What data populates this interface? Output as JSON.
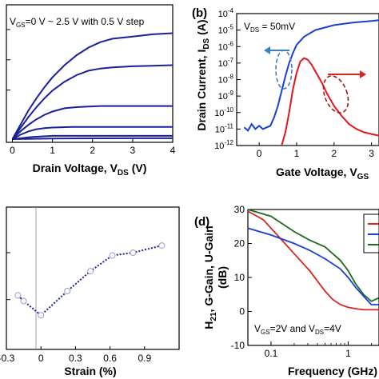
{
  "chart_data": [
    {
      "type": "line",
      "xlabel_main": "Drain Voltage, V",
      "xlabel_sub": "DS",
      "xlabel_tail": " (V)",
      "annotation": {
        "prefix": "V",
        "sub": "GS",
        "text": "=0 V ~ 2.5 V with 0.5 V step"
      },
      "xlim": [
        -0.15,
        4
      ],
      "xticks": [
        "0",
        "1",
        "2",
        "3",
        "4"
      ],
      "xtick_values": [
        0,
        1,
        2,
        3,
        4
      ],
      "ylim": [
        0,
        1
      ],
      "colors": {
        "curves": "#1a1f9c"
      },
      "series": [
        {
          "x": [
            0,
            0.2,
            0.4,
            0.6,
            0.8,
            1.0,
            1.3,
            1.6,
            1.9,
            2.2,
            2.5,
            3.0,
            3.5,
            4.0
          ],
          "values": [
            0,
            0.13,
            0.26,
            0.37,
            0.47,
            0.56,
            0.67,
            0.76,
            0.83,
            0.88,
            0.91,
            0.93,
            0.95,
            0.96
          ]
        },
        {
          "x": [
            0,
            0.2,
            0.4,
            0.6,
            0.8,
            1.0,
            1.3,
            1.6,
            1.9,
            2.2,
            2.5,
            3.0,
            3.5,
            4.0
          ],
          "values": [
            0,
            0.1,
            0.2,
            0.29,
            0.37,
            0.44,
            0.52,
            0.58,
            0.62,
            0.64,
            0.65,
            0.66,
            0.665,
            0.67
          ]
        },
        {
          "x": [
            0,
            0.2,
            0.4,
            0.6,
            0.8,
            1.0,
            1.3,
            1.6,
            1.9,
            2.2,
            2.5,
            3.0,
            3.5,
            4.0
          ],
          "values": [
            0,
            0.07,
            0.13,
            0.18,
            0.22,
            0.25,
            0.28,
            0.29,
            0.295,
            0.3,
            0.3,
            0.3,
            0.3,
            0.3
          ]
        },
        {
          "x": [
            0,
            0.2,
            0.4,
            0.6,
            0.8,
            1.0,
            1.5,
            2.0,
            2.5,
            3.0,
            3.5,
            4.0
          ],
          "values": [
            0,
            0.04,
            0.07,
            0.09,
            0.1,
            0.105,
            0.11,
            0.11,
            0.11,
            0.11,
            0.11,
            0.11
          ]
        },
        {
          "x": [
            0,
            0.5,
            1.0,
            2.0,
            3.0,
            4.0
          ],
          "values": [
            0,
            0.02,
            0.03,
            0.03,
            0.03,
            0.03
          ]
        },
        {
          "x": [
            0,
            1.0,
            2.0,
            3.0,
            4.0
          ],
          "values": [
            0,
            0.005,
            0.007,
            0.008,
            0.008
          ]
        }
      ]
    },
    {
      "type": "line",
      "panel_label": "(b)",
      "ylabel_main": "Drain Current, I",
      "ylabel_sub": "DS",
      "ylabel_tail": " (A)",
      "xlabel_main": "Gate Voltage, V",
      "xlabel_sub": "GS",
      "annotation": {
        "prefix": "V",
        "sub": "DS",
        "text": " = 50mV"
      },
      "xlim": [
        -0.6,
        3.2
      ],
      "xticks": [
        "0",
        "1",
        "2",
        "3"
      ],
      "xtick_values": [
        0,
        1,
        2,
        3
      ],
      "ylim_log10": [
        -12,
        -4
      ],
      "yticks": [
        {
          "base": "10",
          "exp": "-4",
          "value": -4
        },
        {
          "base": "10",
          "exp": "-5",
          "value": -5
        },
        {
          "base": "10",
          "exp": "-6",
          "value": -6
        },
        {
          "base": "10",
          "exp": "-7",
          "value": -7
        },
        {
          "base": "10",
          "exp": "-8",
          "value": -8
        },
        {
          "base": "10",
          "exp": "-9",
          "value": -9
        },
        {
          "base": "10",
          "exp": "-10",
          "value": -10
        },
        {
          "base": "10",
          "exp": "-11",
          "value": -11
        },
        {
          "base": "10",
          "exp": "-12",
          "value": -12
        }
      ],
      "colors": {
        "ids": "#1a3fd4",
        "gm": "#e8141c",
        "ellipse_blue": "#3b7fc9",
        "ellipse_red": "#a31515",
        "arrow_blue": "#3b7fc9",
        "arrow_red": "#d6261e"
      },
      "series": [
        {
          "axis": "left",
          "x": [
            -0.4,
            -0.3,
            -0.2,
            -0.1,
            0.0,
            0.1,
            0.2,
            0.3,
            0.4,
            0.5,
            0.6,
            0.7,
            0.8,
            0.9,
            1.0,
            1.2,
            1.5,
            2.0,
            2.5,
            3.0,
            3.2
          ],
          "log10_values": [
            -10.9,
            -11.1,
            -10.7,
            -11.0,
            -10.8,
            -11.0,
            -10.9,
            -10.8,
            -10.3,
            -9.6,
            -8.7,
            -7.8,
            -7.0,
            -6.4,
            -5.9,
            -5.4,
            -5.0,
            -4.7,
            -4.55,
            -4.45,
            -4.4
          ]
        },
        {
          "axis": "right",
          "x": [
            0.6,
            0.7,
            0.8,
            0.9,
            1.0,
            1.1,
            1.2,
            1.3,
            1.4,
            1.5,
            1.6,
            1.7,
            1.8,
            1.9,
            2.0,
            2.2,
            2.4,
            2.6,
            2.8,
            3.0,
            3.2
          ],
          "log10_values": [
            -12.0,
            -11.2,
            -10.0,
            -8.6,
            -7.6,
            -6.9,
            -6.7,
            -6.8,
            -7.1,
            -7.5,
            -7.9,
            -8.3,
            -8.8,
            -9.2,
            -9.6,
            -10.2,
            -10.7,
            -11.0,
            -11.2,
            -11.3,
            -11.4
          ]
        }
      ]
    },
    {
      "type": "scatter",
      "xlabel": "Strain (%)",
      "xlim": [
        -0.3,
        1.2
      ],
      "xticks": [
        "-0.3",
        "0",
        "0.3",
        "0.6",
        "0.9"
      ],
      "xtick_values": [
        -0.3,
        0,
        0.3,
        0.6,
        0.9
      ],
      "ylim": [
        0,
        1
      ],
      "colors": {
        "line": "#1a1f9c",
        "marker": "#9a9ad6"
      },
      "series": [
        {
          "x": [
            -0.2,
            -0.15,
            0.0,
            0.23,
            0.43,
            0.62,
            0.8,
            1.05
          ],
          "values": [
            0.38,
            0.34,
            0.24,
            0.41,
            0.55,
            0.66,
            0.68,
            0.73
          ]
        }
      ]
    },
    {
      "type": "line",
      "panel_label": "(d)",
      "ylabel": "H21, G-Gain, U-Gain",
      "ylabel_line1": "H",
      "ylabel_line1_sub": "21",
      "ylabel_line1_tail": ", G-Gain, U-Gain",
      "ylabel_line2": "(dB)",
      "xlabel": "Frequency (GHz)",
      "annotation": {
        "p1": "V",
        "s1": "GS",
        "t1": "=2V and V",
        "s2": "DS",
        "t2": "=4V"
      },
      "xlim_log10": [
        -1.3,
        0.4
      ],
      "xticks": [
        "0.1",
        "1"
      ],
      "xtick_values_log10": [
        -1,
        0
      ],
      "ylim": [
        -10,
        30
      ],
      "yticks": [
        "30",
        "20",
        "10",
        "0",
        "-10"
      ],
      "ytick_values": [
        30,
        20,
        10,
        0,
        -10
      ],
      "colors": {
        "red": "#d6261e",
        "blue": "#1a3fd4",
        "green": "#1f6b1f"
      },
      "series": [
        {
          "color": "red",
          "log10_x": [
            -1.3,
            -1.1,
            -0.9,
            -0.7,
            -0.5,
            -0.4,
            -0.3,
            -0.2,
            -0.1,
            0.0,
            0.1,
            0.2,
            0.3,
            0.4
          ],
          "values": [
            29.5,
            27,
            22,
            17,
            12,
            9,
            6,
            3.5,
            2,
            1.2,
            0.8,
            0.5,
            0.5,
            0.5
          ]
        },
        {
          "color": "blue",
          "log10_x": [
            -1.3,
            -1.0,
            -0.7,
            -0.5,
            -0.3,
            -0.1,
            0.0,
            0.1,
            0.2,
            0.3,
            0.4
          ],
          "values": [
            24.5,
            22.5,
            20,
            18,
            15.5,
            12.5,
            10,
            7,
            4.5,
            2,
            2
          ]
        },
        {
          "color": "green",
          "log10_x": [
            -1.3,
            -1.0,
            -0.7,
            -0.5,
            -0.3,
            -0.1,
            0.0,
            0.1,
            0.2,
            0.3,
            0.4
          ],
          "values": [
            30,
            28,
            23.5,
            21,
            19,
            15,
            12,
            8,
            5,
            3,
            4
          ]
        }
      ]
    }
  ]
}
